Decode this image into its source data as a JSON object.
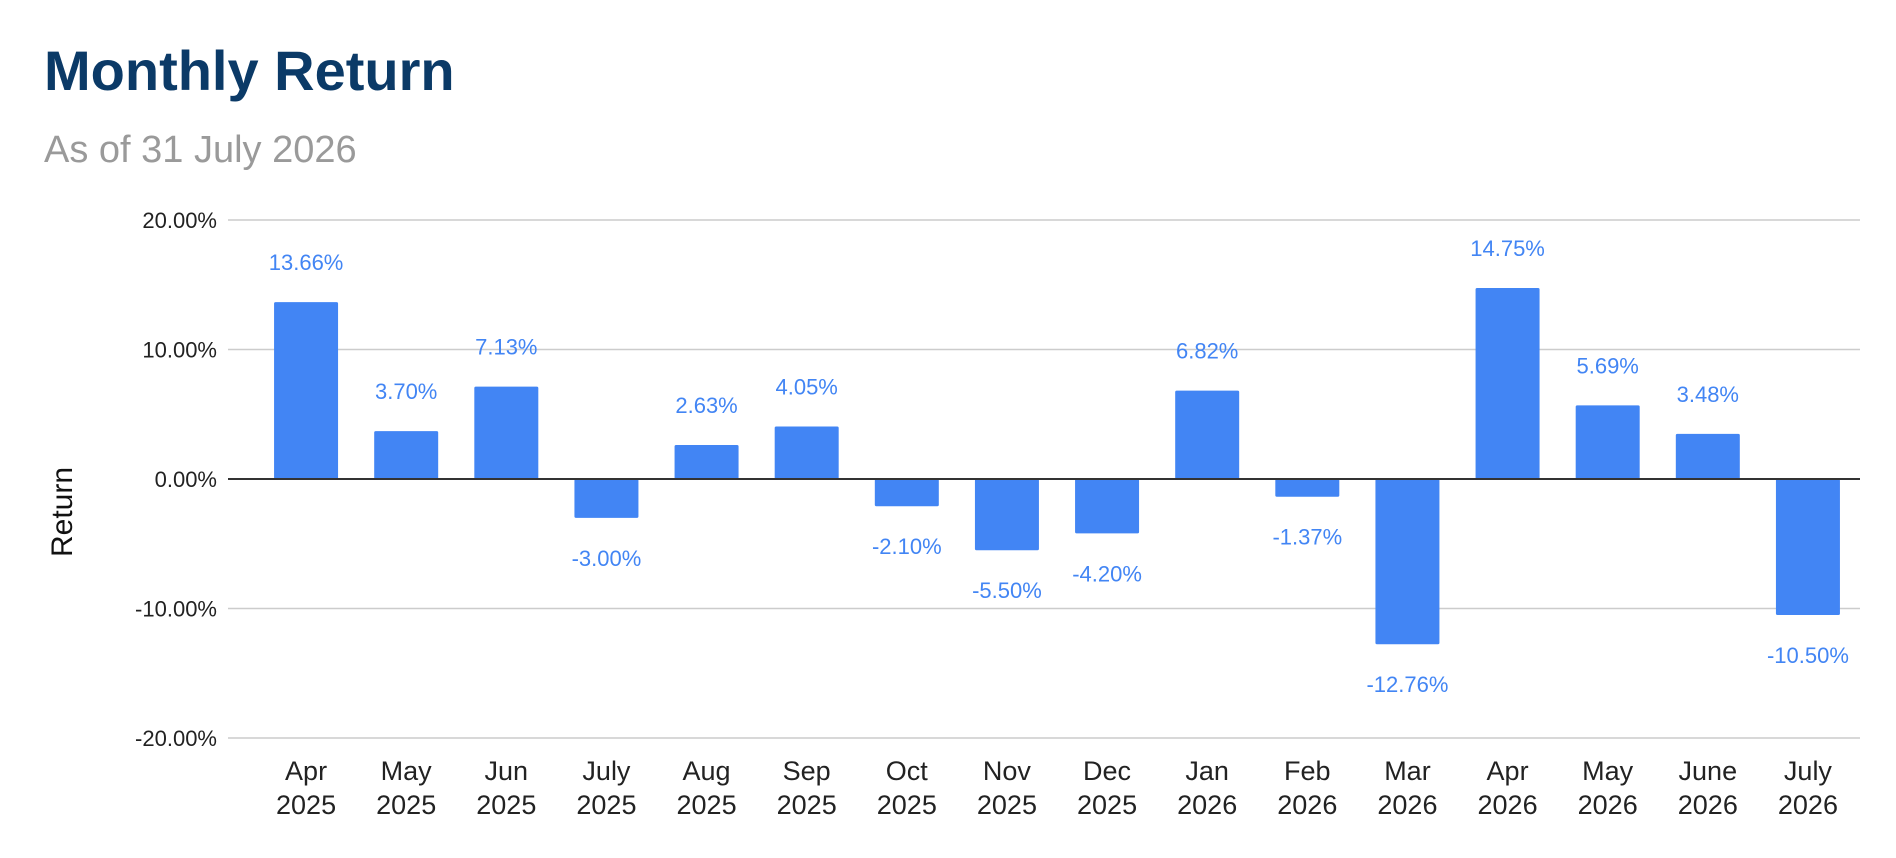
{
  "header": {
    "title": "Monthly Return",
    "subtitle": "As of 31 July 2026"
  },
  "colors": {
    "bar": "#4285f4",
    "label": "#4285f4",
    "grid": "#cccccc",
    "zero_line": "#333333",
    "title": "#0b3a67",
    "subtitle": "#9a9a9a"
  },
  "chart_data": {
    "type": "bar",
    "title": "Monthly Return",
    "subtitle": "As of 31 July 2026",
    "xlabel": "",
    "ylabel": "Return",
    "ylim": [
      -20,
      20
    ],
    "yticks": [
      20,
      10,
      0,
      -10,
      -20
    ],
    "ytick_labels": [
      "20.00%",
      "10.00%",
      "0.00%",
      "-10.00%",
      "-20.00%"
    ],
    "grid": true,
    "legend": "none",
    "categories": [
      [
        "Apr",
        "2025"
      ],
      [
        "May",
        "2025"
      ],
      [
        "Jun",
        "2025"
      ],
      [
        "July",
        "2025"
      ],
      [
        "Aug",
        "2025"
      ],
      [
        "Sep",
        "2025"
      ],
      [
        "Oct",
        "2025"
      ],
      [
        "Nov",
        "2025"
      ],
      [
        "Dec",
        "2025"
      ],
      [
        "Jan",
        "2026"
      ],
      [
        "Feb",
        "2026"
      ],
      [
        "Mar",
        "2026"
      ],
      [
        "Apr",
        "2026"
      ],
      [
        "May",
        "2026"
      ],
      [
        "June",
        "2026"
      ],
      [
        "July",
        "2026"
      ]
    ],
    "values": [
      13.66,
      3.7,
      7.13,
      -3.0,
      2.63,
      4.05,
      -2.1,
      -5.5,
      -4.2,
      6.82,
      -1.37,
      -12.76,
      14.75,
      5.69,
      3.48,
      -10.5
    ],
    "data_labels": [
      "13.66%",
      "3.70%",
      "7.13%",
      "-3.00%",
      "2.63%",
      "4.05%",
      "-2.10%",
      "-5.50%",
      "-4.20%",
      "6.82%",
      "-1.37%",
      "-12.76%",
      "14.75%",
      "5.69%",
      "3.48%",
      "-10.50%"
    ]
  }
}
